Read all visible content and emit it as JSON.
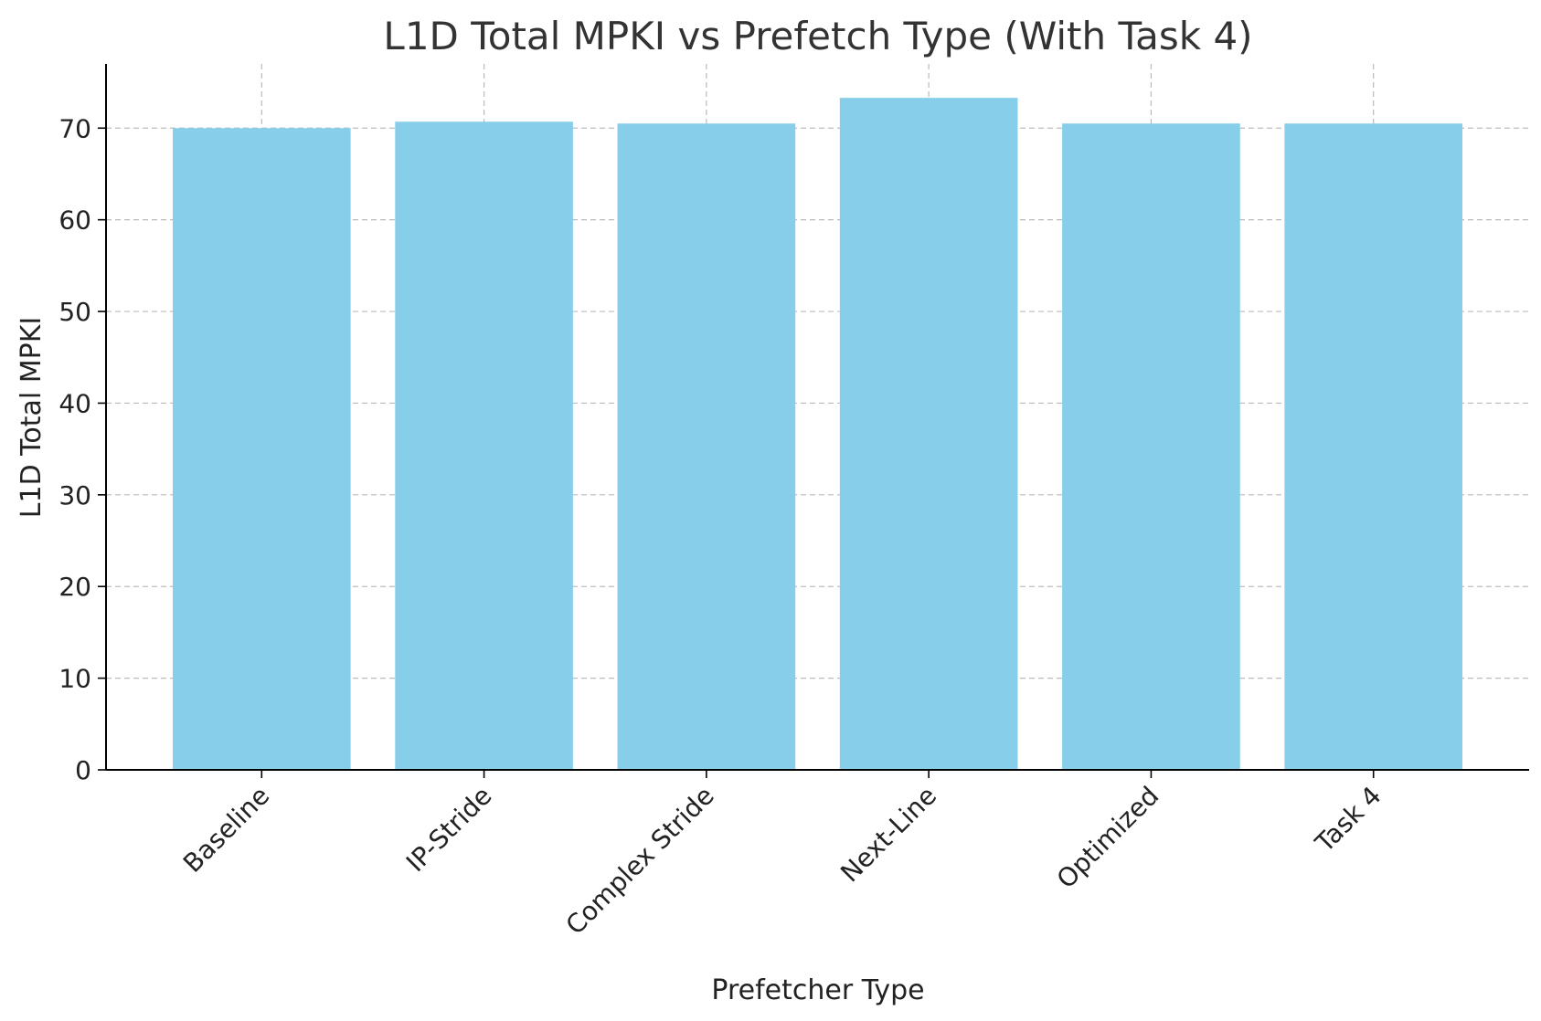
{
  "chart_data": {
    "type": "bar",
    "title": "L1D Total MPKI vs Prefetch Type (With Task 4)",
    "xlabel": "Prefetcher Type",
    "ylabel": "L1D Total MPKI",
    "categories": [
      "Baseline",
      "IP-Stride",
      "Complex Stride",
      "Next-Line",
      "Optimized",
      "Task 4"
    ],
    "values": [
      70.0,
      70.7,
      70.5,
      73.3,
      70.5,
      70.5
    ],
    "ylim": [
      0,
      77
    ],
    "yticks": [
      0,
      10,
      20,
      30,
      40,
      50,
      60,
      70
    ],
    "grid": true,
    "bar_color": "#87CEEB"
  }
}
